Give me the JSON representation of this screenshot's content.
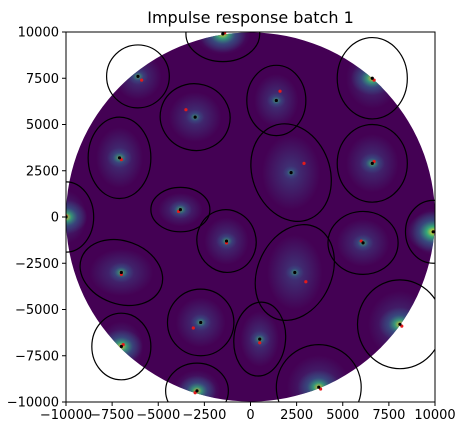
{
  "chart_data": {
    "type": "scatter",
    "title": "Impulse response batch 1",
    "xlabel": "",
    "ylabel": "",
    "xlim": [
      -10000,
      10000
    ],
    "ylim": [
      -10000,
      10000
    ],
    "xticks": [
      -10000,
      -7500,
      -5000,
      -2500,
      0,
      2500,
      5000,
      7500,
      10000
    ],
    "yticks": [
      -10000,
      -7500,
      -5000,
      -2500,
      0,
      2500,
      5000,
      7500,
      10000
    ],
    "xtick_labels": [
      "−10000",
      "−7500",
      "−5000",
      "−2500",
      "0",
      "2500",
      "5000",
      "7500",
      "10000"
    ],
    "ytick_labels": [
      "−10000",
      "−7500",
      "−5000",
      "−2500",
      "0",
      "2500",
      "5000",
      "7500",
      "10000"
    ],
    "grid": false,
    "disk_radius": 10000,
    "colors": {
      "background": "#440154",
      "mid": "#31688e",
      "high": "#35b779",
      "peak": "#fde725",
      "black_point": "#000000",
      "red_point": "#e41a1c",
      "ellipse": "#000000"
    },
    "sources": [
      {
        "x": -1500,
        "y": 9900,
        "red_x": -1400,
        "y_red": 9950,
        "rx": 2000,
        "ry": 1500,
        "angle": 0,
        "peak": 0.8
      },
      {
        "x": -6100,
        "y": 7600,
        "red_x": -5900,
        "y_red": 7400,
        "rx": 1700,
        "ry": 1700,
        "angle": 0,
        "peak": 0.2
      },
      {
        "x": 6600,
        "y": 7500,
        "red_x": 6700,
        "y_red": 7400,
        "rx": 1900,
        "ry": 2200,
        "angle": 0,
        "peak": 0.7
      },
      {
        "x": -3000,
        "y": 5400,
        "red_x": -3500,
        "y_red": 5800,
        "rx": 1900,
        "ry": 1800,
        "angle": -15,
        "peak": 0.15
      },
      {
        "x": 1400,
        "y": 6300,
        "red_x": 1600,
        "y_red": 6800,
        "rx": 1600,
        "ry": 1900,
        "angle": 0,
        "peak": 0.15
      },
      {
        "x": -7100,
        "y": 3200,
        "red_x": -7000,
        "y_red": 3100,
        "rx": 1700,
        "ry": 2200,
        "angle": 0,
        "peak": 0.3
      },
      {
        "x": 2200,
        "y": 2400,
        "red_x": 2900,
        "y_red": 2900,
        "rx": 2100,
        "ry": 2700,
        "angle": 20,
        "peak": 0.1
      },
      {
        "x": 6600,
        "y": 2900,
        "red_x": 6700,
        "y_red": 3000,
        "rx": 1900,
        "ry": 2100,
        "angle": 0,
        "peak": 0.3
      },
      {
        "x": -3800,
        "y": 400,
        "red_x": -3900,
        "y_red": 300,
        "rx": 1600,
        "ry": 1200,
        "angle": 0,
        "peak": 0.25
      },
      {
        "x": -1300,
        "y": -1300,
        "red_x": -1300,
        "y_red": -1400,
        "rx": 1600,
        "ry": 1700,
        "angle": 15,
        "peak": 0.2
      },
      {
        "x": 6100,
        "y": -1400,
        "red_x": 6000,
        "y_red": -1300,
        "rx": 1900,
        "ry": 1700,
        "angle": 0,
        "peak": 0.2
      },
      {
        "x": 9900,
        "y": -800,
        "red_x": 9950,
        "y_red": -800,
        "rx": 1500,
        "ry": 1700,
        "angle": 0,
        "peak": 0.9
      },
      {
        "x": -10000,
        "y": 0,
        "red_x": -10000,
        "y_red": 50,
        "rx": 1500,
        "ry": 1900,
        "angle": 0,
        "peak": 0.7
      },
      {
        "x": -7000,
        "y": -3000,
        "red_x": -7000,
        "y_red": -3100,
        "rx": 2300,
        "ry": 1700,
        "angle": -20,
        "peak": 0.3
      },
      {
        "x": 2400,
        "y": -3000,
        "red_x": 3000,
        "y_red": -3500,
        "rx": 2000,
        "ry": 2700,
        "angle": -25,
        "peak": 0.15
      },
      {
        "x": 8100,
        "y": -5800,
        "red_x": 8200,
        "y_red": -5900,
        "rx": 2300,
        "ry": 2400,
        "angle": 0,
        "peak": 0.7
      },
      {
        "x": -2700,
        "y": -5700,
        "red_x": -3100,
        "y_red": -6000,
        "rx": 1800,
        "ry": 1800,
        "angle": 0,
        "peak": 0.2
      },
      {
        "x": 500,
        "y": -6600,
        "red_x": 500,
        "y_red": -6800,
        "rx": 1400,
        "ry": 2000,
        "angle": -5,
        "peak": 0.2
      },
      {
        "x": -7000,
        "y": -7000,
        "red_x": -6900,
        "y_red": -6900,
        "rx": 1600,
        "ry": 1800,
        "angle": 0,
        "peak": 0.7
      },
      {
        "x": -2900,
        "y": -9400,
        "red_x": -3000,
        "y_red": -9500,
        "rx": 1700,
        "ry": 1500,
        "angle": 0,
        "peak": 0.6
      },
      {
        "x": 3700,
        "y": -9200,
        "red_x": 3800,
        "y_red": -9300,
        "rx": 2300,
        "ry": 2300,
        "angle": 0,
        "peak": 0.7
      }
    ]
  }
}
